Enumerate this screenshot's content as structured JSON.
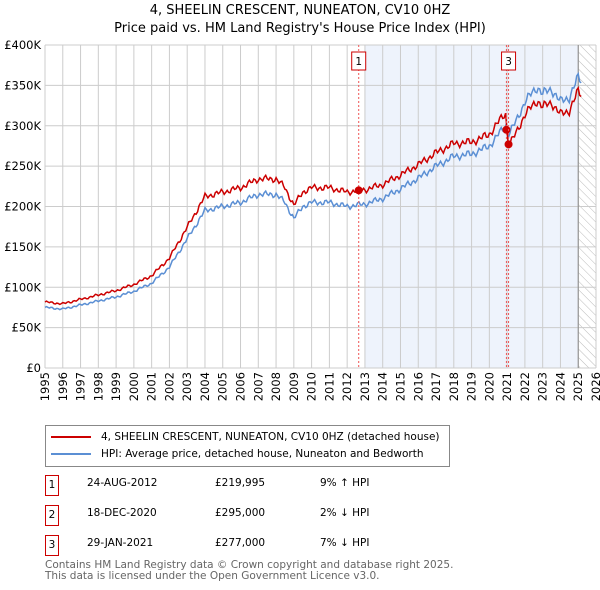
{
  "chart_data": {
    "type": "line",
    "title": "4, SHEELIN CRESCENT, NUNEATON, CV10 0HZ",
    "subtitle": "Price paid vs. HM Land Registry's House Price Index (HPI)",
    "xlim": [
      1995,
      2026
    ],
    "ylim": [
      0,
      400000
    ],
    "x_ticks": [
      "1995",
      "1996",
      "1997",
      "1998",
      "1999",
      "2000",
      "2001",
      "2002",
      "2003",
      "2004",
      "2005",
      "2006",
      "2007",
      "2008",
      "2009",
      "2010",
      "2011",
      "2012",
      "2013",
      "2014",
      "2015",
      "2016",
      "2017",
      "2018",
      "2019",
      "2020",
      "2021",
      "2022",
      "2023",
      "2024",
      "2025",
      "2026"
    ],
    "y_ticks": [
      {
        "v": 0,
        "label": "£0"
      },
      {
        "v": 50000,
        "label": "£50K"
      },
      {
        "v": 100000,
        "label": "£100K"
      },
      {
        "v": 150000,
        "label": "£150K"
      },
      {
        "v": 200000,
        "label": "£200K"
      },
      {
        "v": 250000,
        "label": "£250K"
      },
      {
        "v": 300000,
        "label": "£300K"
      },
      {
        "v": 350000,
        "label": "£350K"
      },
      {
        "v": 400000,
        "label": "£400K"
      }
    ],
    "grid": true,
    "shaded_range": [
      2013,
      2025
    ],
    "hatched_from": 2025,
    "hpi": {
      "name": "HPI: Average price, detached house, Nuneaton and Bedworth",
      "color": "#5b8fd4",
      "x": [
        1995,
        1996,
        1997,
        1998,
        1999,
        2000,
        2001,
        2002,
        2003,
        2004,
        2005,
        2006,
        2007,
        2008,
        2008.5,
        2009,
        2009.5,
        2010,
        2011,
        2012,
        2012.65,
        2013,
        2014,
        2015,
        2016,
        2017,
        2018,
        2019,
        2020,
        2020.9,
        2021.1,
        2021.5,
        2022,
        2022.7,
        2023,
        2023.5,
        2024,
        2024.5,
        2025,
        2025.2
      ],
      "y": [
        75000,
        73000,
        78000,
        83000,
        88000,
        95000,
        105000,
        125000,
        160000,
        195000,
        200000,
        205000,
        215000,
        215000,
        205000,
        185000,
        200000,
        205000,
        205000,
        200000,
        202000,
        203000,
        210000,
        222000,
        235000,
        250000,
        262000,
        265000,
        275000,
        300000,
        290000,
        305000,
        330000,
        348000,
        340000,
        345000,
        330000,
        335000,
        360000,
        355000
      ]
    },
    "property": {
      "name": "4, SHEELIN CRESCENT, NUNEATON, CV10 0HZ (detached house)",
      "color": "#cc0000"
    },
    "sales": [
      {
        "n": "1",
        "x": 2012.65,
        "date": "24-AUG-2012",
        "price": 219995,
        "price_label": "£219,995",
        "hpi": "9% ↑ HPI"
      },
      {
        "n": "2",
        "x": 2020.96,
        "date": "18-DEC-2020",
        "price": 295000,
        "price_label": "£295,000",
        "hpi": "2% ↓ HPI"
      },
      {
        "n": "3",
        "x": 2021.08,
        "date": "29-JAN-2021",
        "price": 277000,
        "price_label": "£277,000",
        "hpi": "7% ↓ HPI"
      }
    ],
    "marker_labels_shown": [
      "1",
      "3"
    ]
  },
  "footer": [
    "Contains HM Land Registry data © Crown copyright and database right 2025.",
    "This data is licensed under the Open Government Licence v3.0."
  ]
}
